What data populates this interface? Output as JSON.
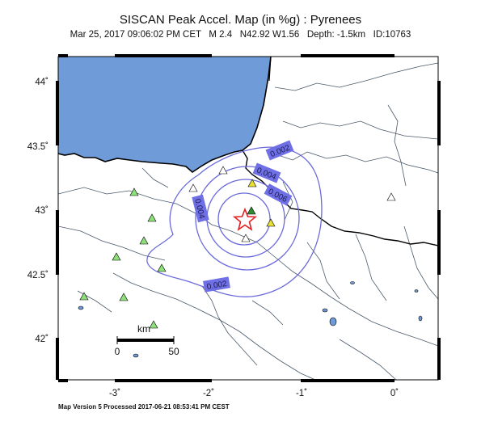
{
  "header": {
    "title": "SISCAN Peak Accel. Map (in %g) : Pyrenees",
    "subtitle": "Mar 25, 2017 09:06:02 PM CET   M 2.4   N42.92 W1.56   Depth: -1.5km   ID:10763"
  },
  "axes": {
    "lat_labels": [
      "44˚",
      "43.5˚",
      "43˚",
      "42.5˚",
      "42˚"
    ],
    "lon_labels": [
      "-3˚",
      "-2˚",
      "-1˚",
      "0˚"
    ]
  },
  "contours": [
    {
      "label": "0.002"
    },
    {
      "label": "0.004"
    },
    {
      "label": "0.006"
    },
    {
      "label": "0.004"
    },
    {
      "label": "0.002"
    }
  ],
  "scale_bar": {
    "unit": "km",
    "start": "0",
    "end": "50"
  },
  "footer": "Map Version 5 Processed 2017-06-21 08:53:41 PM CEST",
  "colors": {
    "sea": "#6f9bd8",
    "contour": "#6a6adc",
    "label_box": "#7070e6",
    "station_green": "#8ee07a",
    "station_yellow": "#e8e034",
    "station_white": "#ffffff",
    "border": "#000000",
    "river": "#4a5a6a",
    "epicenter": "#e02020"
  }
}
